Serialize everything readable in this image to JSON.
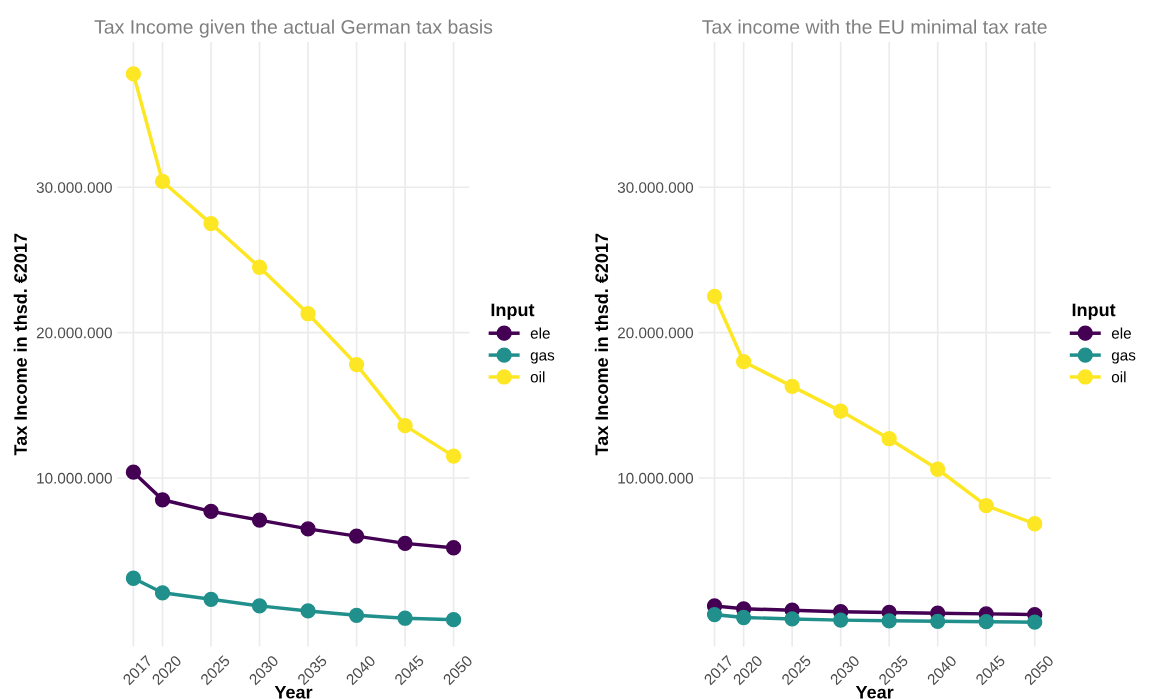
{
  "chart_data": [
    {
      "type": "line",
      "title": "Tax Income given the actual German tax basis",
      "xlabel": "Year",
      "ylabel": "Tax Income in thsd. €2017",
      "legend_title": "Input",
      "legend": "right",
      "grid": true,
      "marker": "circle",
      "line_style": "solid",
      "x": [
        2017,
        2020,
        2025,
        2030,
        2035,
        2040,
        2045,
        2050
      ],
      "xlim": [
        2015.35,
        2051.65
      ],
      "xticks": [
        2017,
        2020,
        2025,
        2030,
        2035,
        2040,
        2045,
        2050
      ],
      "ylim": [
        -1600000,
        40000000
      ],
      "yticks": [
        {
          "value": 10000000,
          "label": "10.000.000"
        },
        {
          "value": 20000000,
          "label": "20.000.000"
        },
        {
          "value": 30000000,
          "label": "30.000.000"
        }
      ],
      "series": [
        {
          "name": "ele",
          "color": "#440154",
          "values": [
            10400000,
            8500000,
            7700000,
            7100000,
            6500000,
            6000000,
            5500000,
            5200000
          ]
        },
        {
          "name": "gas",
          "color": "#21908c",
          "values": [
            3100000,
            2100000,
            1650000,
            1200000,
            850000,
            550000,
            350000,
            250000
          ]
        },
        {
          "name": "oil",
          "color": "#fde725",
          "values": [
            37800000,
            30400000,
            27500000,
            24500000,
            21300000,
            17800000,
            13600000,
            11500000
          ]
        }
      ]
    },
    {
      "type": "line",
      "title": "Tax income with the EU minimal tax rate",
      "xlabel": "Year",
      "ylabel": "Tax Income in thsd. €2017",
      "legend_title": "Input",
      "legend": "right",
      "grid": true,
      "marker": "circle",
      "line_style": "solid",
      "x": [
        2017,
        2020,
        2025,
        2030,
        2035,
        2040,
        2045,
        2050
      ],
      "xlim": [
        2015.35,
        2051.65
      ],
      "xticks": [
        2017,
        2020,
        2025,
        2030,
        2035,
        2040,
        2045,
        2050
      ],
      "ylim": [
        -1600000,
        40000000
      ],
      "yticks": [
        {
          "value": 10000000,
          "label": "10.000.000"
        },
        {
          "value": 20000000,
          "label": "20.000.000"
        },
        {
          "value": 30000000,
          "label": "30.000.000"
        }
      ],
      "series": [
        {
          "name": "ele",
          "color": "#440154",
          "values": [
            1200000,
            1000000,
            900000,
            800000,
            750000,
            700000,
            650000,
            600000
          ]
        },
        {
          "name": "gas",
          "color": "#21908c",
          "values": [
            600000,
            400000,
            300000,
            220000,
            170000,
            140000,
            110000,
            80000
          ]
        },
        {
          "name": "oil",
          "color": "#fde725",
          "values": [
            22500000,
            18000000,
            16300000,
            14600000,
            12700000,
            10600000,
            8100000,
            6850000
          ]
        }
      ]
    }
  ]
}
